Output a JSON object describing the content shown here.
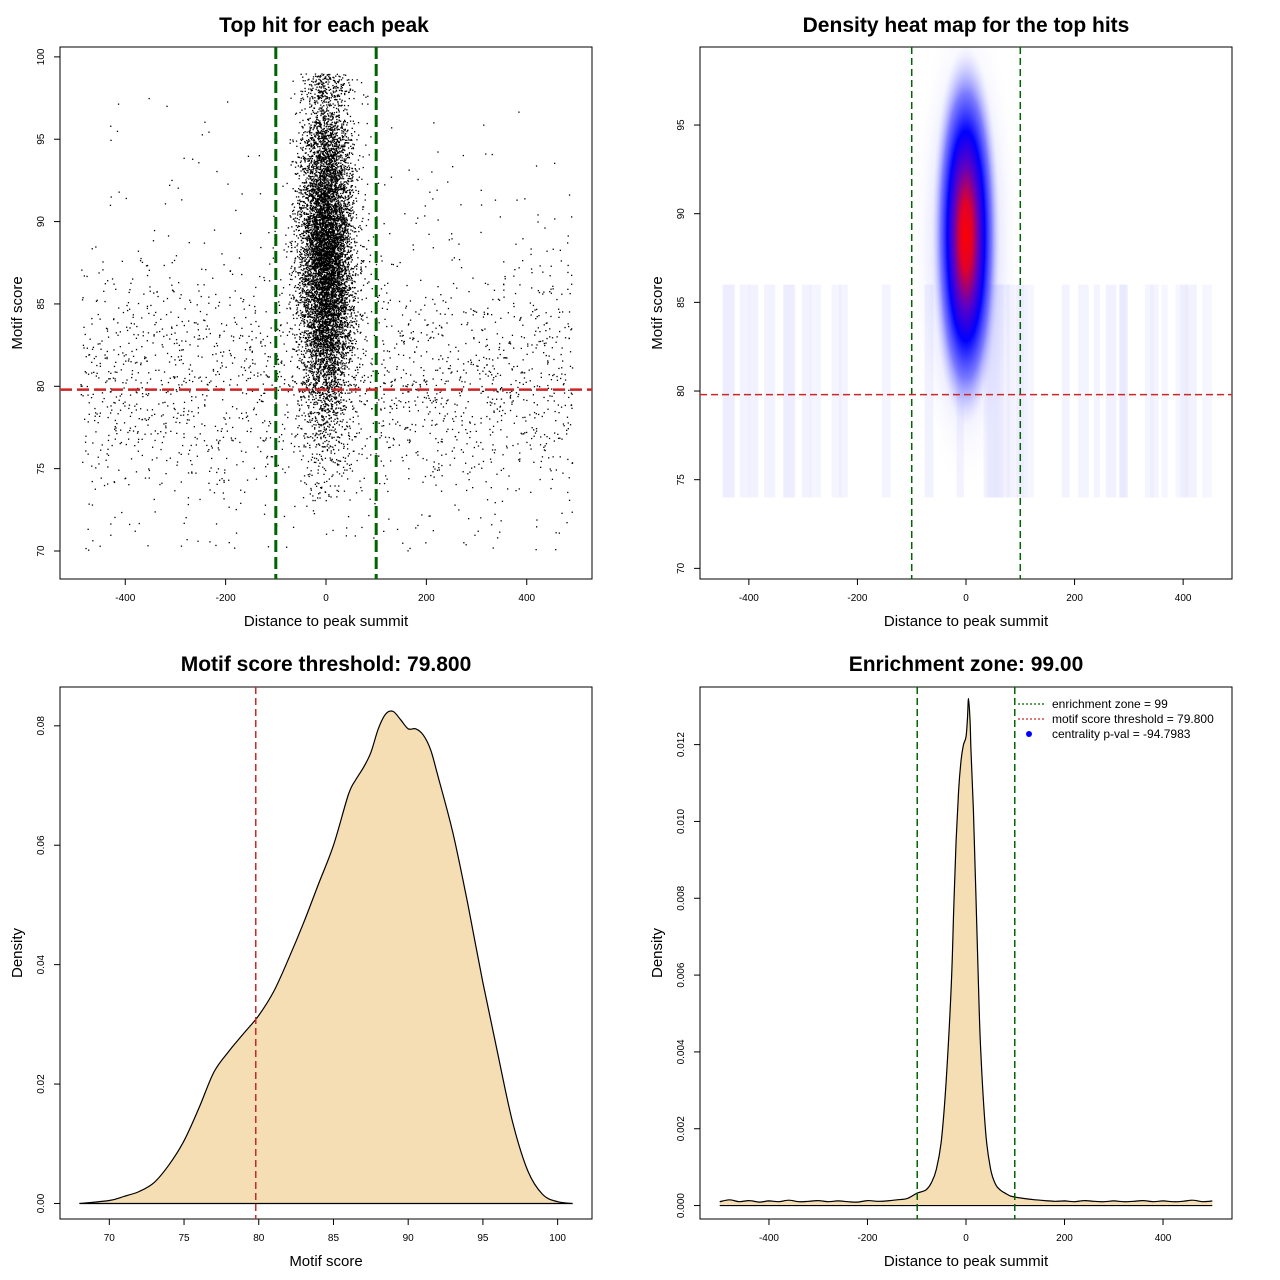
{
  "colors": {
    "green": "#006400",
    "red": "#cd2626",
    "fill": "#f5deb3",
    "blue": "#0000ff",
    "heat_red": "#ff0000"
  },
  "chart_data": [
    {
      "type": "scatter",
      "title": "Top hit for each peak",
      "xlabel": "Distance to peak summit",
      "ylabel": "Motif score",
      "xlim": [
        -530,
        530
      ],
      "ylim": [
        68.3,
        100.6
      ],
      "xticks": [
        -400,
        -200,
        0,
        200,
        400
      ],
      "yticks": [
        70,
        75,
        80,
        85,
        90,
        95,
        100
      ],
      "vlines": [
        -100,
        100
      ],
      "hline": 79.8,
      "grid": false,
      "description": {
        "central_cluster": {
          "x_center": 0,
          "x_sd": 26,
          "y_center": 88,
          "y_sd": 5,
          "y_range": [
            73,
            99
          ]
        },
        "background": {
          "x_range": [
            -490,
            490
          ],
          "y_center": 80,
          "y_sd": 4,
          "y_range": [
            70,
            99
          ]
        }
      }
    },
    {
      "type": "heatmap",
      "title": "Density heat map for the top hits",
      "xlabel": "Distance to peak summit",
      "ylabel": "Motif score",
      "xlim": [
        -490,
        490
      ],
      "ylim": [
        69.4,
        99.4
      ],
      "xticks": [
        -400,
        -200,
        0,
        200,
        400
      ],
      "yticks": [
        70,
        75,
        80,
        85,
        90,
        95
      ],
      "vlines": [
        -100,
        100
      ],
      "hline": 79.8,
      "peak": {
        "x": 0,
        "y": 89.3
      },
      "grid": false
    },
    {
      "type": "area",
      "title": "Motif score threshold: 79.800",
      "xlabel": "Motif score",
      "ylabel": "Density",
      "xlim": [
        66.7,
        102.3
      ],
      "ylim": [
        -0.0026,
        0.0865
      ],
      "xticks": [
        70,
        75,
        80,
        85,
        90,
        95,
        100
      ],
      "yticks": [
        0.0,
        0.02,
        0.04,
        0.06,
        0.08
      ],
      "ytick_labels": [
        "0.00",
        "0.02",
        "0.04",
        "0.06",
        "0.08"
      ],
      "vline": 79.8,
      "x": [
        68,
        70,
        71,
        72,
        73,
        74,
        75,
        76,
        77,
        78,
        79,
        80,
        81,
        82,
        83,
        84,
        85,
        86,
        86.5,
        87,
        87.5,
        88,
        88.5,
        89,
        89.5,
        90,
        90.5,
        91,
        91.5,
        92,
        93,
        94,
        95,
        96,
        97,
        98,
        99,
        100,
        101
      ],
      "y": [
        0.0,
        0.0005,
        0.0012,
        0.002,
        0.0035,
        0.0065,
        0.0105,
        0.016,
        0.022,
        0.0255,
        0.0285,
        0.0315,
        0.0355,
        0.041,
        0.047,
        0.0535,
        0.06,
        0.0685,
        0.071,
        0.073,
        0.0755,
        0.0795,
        0.082,
        0.0824,
        0.081,
        0.0795,
        0.0795,
        0.0785,
        0.076,
        0.0715,
        0.062,
        0.05,
        0.037,
        0.025,
        0.0135,
        0.0055,
        0.0015,
        0.0003,
        0.0
      ],
      "grid": false
    },
    {
      "type": "area",
      "title": "Enrichment zone: 99.00",
      "xlabel": "Distance to peak summit",
      "ylabel": "Density",
      "xlim": [
        -540,
        540
      ],
      "ylim": [
        -0.00035,
        0.0135
      ],
      "xticks": [
        -400,
        -200,
        0,
        200,
        400
      ],
      "yticks": [
        0.0,
        0.002,
        0.004,
        0.006,
        0.008,
        0.01,
        0.012
      ],
      "ytick_labels": [
        "0.000",
        "0.002",
        "0.004",
        "0.006",
        "0.008",
        "0.010",
        "0.012"
      ],
      "vlines": [
        -99,
        99
      ],
      "x": [
        -500,
        -480,
        -460,
        -440,
        -420,
        -400,
        -380,
        -360,
        -340,
        -320,
        -300,
        -280,
        -260,
        -240,
        -220,
        -200,
        -180,
        -160,
        -140,
        -120,
        -100,
        -90,
        -80,
        -70,
        -60,
        -50,
        -40,
        -30,
        -25,
        -20,
        -15,
        -10,
        -5,
        0,
        3,
        5,
        8,
        10,
        15,
        20,
        25,
        30,
        40,
        50,
        60,
        70,
        80,
        90,
        100,
        120,
        140,
        160,
        180,
        200,
        220,
        240,
        260,
        280,
        300,
        320,
        340,
        360,
        380,
        400,
        420,
        440,
        460,
        480,
        500
      ],
      "y": [
        0.0001,
        0.00015,
        0.0001,
        0.00013,
        9e-05,
        0.00012,
        0.0001,
        0.00014,
        0.0001,
        0.00011,
        0.00013,
        0.0001,
        0.00012,
        0.0001,
        9e-05,
        0.00013,
        0.00011,
        0.00012,
        0.00015,
        0.00018,
        0.00032,
        0.00036,
        0.00042,
        0.0006,
        0.00095,
        0.0017,
        0.0033,
        0.0057,
        0.0077,
        0.0095,
        0.0108,
        0.0116,
        0.012,
        0.0122,
        0.0127,
        0.0132,
        0.0127,
        0.0119,
        0.0103,
        0.0081,
        0.0059,
        0.004,
        0.0019,
        0.00095,
        0.00055,
        0.0004,
        0.00032,
        0.00025,
        0.00022,
        0.00018,
        0.00015,
        0.00013,
        0.00011,
        0.00012,
        0.0001,
        0.00013,
        0.00011,
        0.0001,
        0.00012,
        0.0001,
        0.00011,
        0.00013,
        0.0001,
        0.00012,
        0.0001,
        0.00011,
        0.00014,
        0.0001,
        0.00012
      ],
      "legend": {
        "placement": "top-right",
        "entries": [
          {
            "label": "enrichment zone = 99",
            "style": "dotted-green"
          },
          {
            "label": "motif score threshold = 79.800",
            "style": "dotted-red"
          },
          {
            "label": "centrality p-val = -94.7983",
            "style": "blue-point"
          }
        ]
      },
      "grid": false
    }
  ]
}
